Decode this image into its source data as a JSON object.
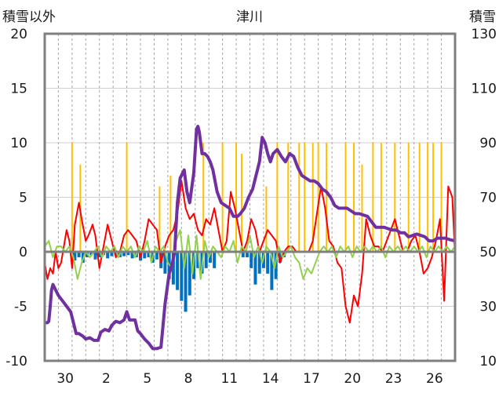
{
  "chart_data": {
    "type": "line",
    "title": "津川",
    "ylabel_left": "積雪以外",
    "ylabel_right": "積雪",
    "ylim_left": [
      -10,
      20
    ],
    "ylim_right": [
      10,
      130
    ],
    "yticks_left": [
      "20",
      "15",
      "10",
      "5",
      "0",
      "-5",
      "-10"
    ],
    "yticks_right": [
      "130",
      "110",
      "90",
      "70",
      "50",
      "30",
      "10"
    ],
    "x_ticks": [
      "30",
      "2",
      "5",
      "8",
      "11",
      "14",
      "17",
      "20",
      "23",
      "26"
    ],
    "x_tick_positions": [
      1.5,
      4.5,
      7.5,
      10.5,
      13.5,
      16.5,
      19.5,
      22.5,
      25.5,
      28.5
    ],
    "xlim": [
      0,
      30
    ],
    "grid": true,
    "colors": {
      "frame": "#7f7f7f",
      "grid_h": "#d0d0d0",
      "grid_v": "#a6a6a6",
      "red": "#ff0000",
      "green": "#92d050",
      "blue": "#0070c0",
      "orange": "#ffc000",
      "purple": "#7030a0"
    },
    "series": [
      {
        "color": "purple",
        "axis": "right",
        "x": [
          0,
          0.2,
          0.3,
          0.4,
          0.5,
          0.6,
          0.8,
          1.0,
          1.3,
          1.6,
          1.9,
          2.1,
          2.3,
          2.5,
          2.8,
          3.0,
          3.3,
          3.6,
          3.9,
          4.1,
          4.4,
          4.7,
          4.9,
          5.2,
          5.5,
          5.8,
          6.0,
          6.2,
          6.4,
          6.6,
          6.8,
          7.0,
          7.3,
          7.6,
          7.9,
          8.2,
          8.5,
          8.8,
          9.1,
          9.3,
          9.5,
          9.7,
          9.9,
          10.2,
          10.4,
          10.6,
          10.9,
          11.1,
          11.2,
          11.3,
          11.5,
          11.7,
          11.9,
          12.1,
          12.3,
          12.6,
          12.9,
          13.2,
          13.5,
          13.8,
          14.1,
          14.3,
          14.6,
          14.9,
          15.2,
          15.5,
          15.7,
          15.9,
          16.1,
          16.3,
          16.5,
          16.7,
          17.0,
          17.3,
          17.6,
          17.9,
          18.2,
          18.5,
          18.8,
          19.1,
          19.4,
          19.7,
          20.0,
          20.3,
          20.6,
          20.9,
          21.2,
          21.5,
          21.8,
          22.1,
          22.4,
          22.7,
          23.0,
          23.3,
          23.6,
          23.9,
          24.2,
          24.5,
          24.8,
          25.1,
          25.4,
          25.7,
          26.0,
          26.3,
          26.6,
          26.9,
          27.2,
          27.5,
          27.8,
          28.1,
          28.4,
          28.7,
          29.0,
          29.3,
          29.6,
          30.0
        ],
        "values": [
          24,
          24,
          24.5,
          30,
          36,
          38,
          36,
          34,
          32,
          30,
          28,
          24,
          20,
          20,
          19,
          18,
          18.5,
          17.5,
          17.5,
          20.5,
          21.5,
          21,
          23,
          24.5,
          24,
          25,
          28,
          25,
          25,
          25,
          21,
          20,
          18,
          16.5,
          14.5,
          14.5,
          15,
          31,
          42,
          45,
          50,
          68,
          77,
          80,
          72,
          68,
          79,
          95,
          96,
          94,
          86,
          86,
          85,
          83,
          80,
          72,
          68,
          67,
          66,
          63,
          63,
          64,
          66,
          70,
          73,
          79,
          83,
          92,
          90,
          86,
          83,
          86,
          87.5,
          85,
          83,
          86,
          85,
          81,
          78,
          77,
          76,
          76,
          75,
          73,
          72,
          70,
          67,
          66,
          66,
          66,
          65,
          64,
          64,
          63.5,
          63,
          61,
          59,
          59,
          59,
          58.5,
          58,
          58,
          57,
          57,
          55.5,
          56,
          56.5,
          56,
          55.5,
          54,
          54,
          55,
          55,
          55,
          54.5,
          54
        ]
      },
      {
        "color": "red",
        "axis": "left",
        "x": [
          0,
          0.2,
          0.4,
          0.6,
          0.8,
          1.0,
          1.2,
          1.4,
          1.6,
          1.8,
          2.0,
          2.2,
          2.5,
          2.7,
          3.0,
          3.2,
          3.5,
          3.7,
          4.0,
          4.3,
          4.6,
          4.9,
          5.2,
          5.5,
          5.8,
          6.1,
          6.4,
          6.7,
          7.0,
          7.3,
          7.6,
          7.9,
          8.2,
          8.5,
          8.8,
          9.1,
          9.4,
          9.7,
          10.0,
          10.3,
          10.6,
          10.9,
          11.2,
          11.5,
          11.8,
          12.1,
          12.4,
          12.7,
          13.0,
          13.3,
          13.6,
          13.9,
          14.2,
          14.5,
          14.8,
          15.1,
          15.4,
          15.7,
          16.0,
          16.3,
          16.6,
          16.9,
          17.2,
          17.5,
          17.8,
          18.1,
          18.4,
          18.7,
          19.0,
          19.3,
          19.6,
          19.9,
          20.2,
          20.5,
          20.8,
          21.1,
          21.4,
          21.7,
          22.0,
          22.3,
          22.6,
          22.9,
          23.2,
          23.5,
          23.8,
          24.1,
          24.4,
          24.7,
          25.0,
          25.3,
          25.6,
          25.9,
          26.2,
          26.5,
          26.8,
          27.1,
          27.4,
          27.7,
          28.0,
          28.3,
          28.6,
          28.9,
          29.2,
          29.5,
          29.8,
          30.0
        ],
        "values": [
          -1,
          -2.5,
          -1.5,
          -2,
          0,
          -1.5,
          -1,
          0.5,
          2,
          1,
          -1.5,
          2.5,
          4.5,
          3,
          1,
          1.5,
          2.5,
          1.5,
          -1.5,
          0.5,
          2.5,
          1,
          -0.5,
          0,
          1.5,
          2,
          1.5,
          1,
          -0.5,
          1,
          3,
          2.5,
          2,
          -1,
          0.5,
          1.5,
          2,
          3.5,
          6.5,
          4,
          3,
          3.5,
          2,
          1.5,
          3,
          2.5,
          4,
          2,
          0,
          1,
          5.5,
          4,
          2,
          0,
          1,
          3,
          2,
          0,
          1,
          2,
          1.5,
          1,
          -1,
          0,
          0.5,
          0.5,
          0,
          0,
          0,
          0,
          1,
          3.5,
          6,
          4,
          1,
          0.5,
          -1,
          -1.5,
          -5,
          -6.5,
          -4,
          -5,
          -2,
          3,
          1.5,
          0.5,
          0.5,
          0,
          1,
          2,
          3,
          1.5,
          0,
          0,
          1,
          1.5,
          0,
          -2,
          -1.5,
          -0.5,
          1,
          3,
          -4.5,
          6,
          5,
          -0.5
        ]
      },
      {
        "color": "green",
        "axis": "left",
        "x": [
          0,
          0.3,
          0.6,
          0.9,
          1.2,
          1.5,
          1.8,
          2.1,
          2.4,
          2.7,
          3.0,
          3.3,
          3.6,
          3.9,
          4.2,
          4.5,
          4.8,
          5.1,
          5.4,
          5.7,
          6.0,
          6.3,
          6.6,
          6.9,
          7.2,
          7.5,
          7.8,
          8.1,
          8.4,
          8.7,
          9.0,
          9.3,
          9.6,
          9.9,
          10.2,
          10.5,
          10.8,
          11.1,
          11.4,
          11.7,
          12.0,
          12.3,
          12.6,
          12.9,
          13.2,
          13.5,
          13.8,
          14.1,
          14.4,
          14.7,
          15.0,
          15.3,
          15.6,
          15.9,
          16.2,
          16.5,
          16.8,
          17.1,
          17.4,
          17.7,
          18.0,
          18.3,
          18.6,
          18.9,
          19.2,
          19.5,
          19.8,
          20.1,
          20.4,
          20.7,
          21.0,
          21.3,
          21.6,
          21.9,
          22.2,
          22.5,
          22.8,
          23.1,
          23.4,
          23.7,
          24.0,
          24.3,
          24.6,
          24.9,
          25.2,
          25.5,
          25.8,
          26.1,
          26.4,
          26.7,
          27.0,
          27.3,
          27.6,
          27.9,
          28.2,
          28.5,
          28.8,
          29.1,
          29.4,
          29.7,
          30.0
        ],
        "values": [
          0.5,
          1,
          -0.5,
          0.5,
          0.5,
          0,
          0.5,
          -0.5,
          -2.5,
          -1,
          0,
          -0.5,
          0,
          0.5,
          -0.5,
          0.5,
          0,
          0.5,
          -0.5,
          0.5,
          0,
          0.5,
          -0.5,
          0.5,
          0,
          1,
          -1,
          0.5,
          0,
          0.5,
          -1,
          -1.5,
          1,
          2,
          -1.5,
          1.5,
          -2,
          1.5,
          -2.5,
          1,
          -0.5,
          0.5,
          0,
          -0.5,
          0.5,
          0,
          1,
          -1,
          0.5,
          0,
          1.5,
          -0.5,
          0.5,
          -1,
          0.5,
          0,
          -1.5,
          0.5,
          -0.5,
          0,
          0.5,
          -0.5,
          -1,
          -2.5,
          -1.5,
          -2,
          -1,
          0,
          0.5,
          0,
          0.5,
          -0.5,
          0.5,
          0,
          0.5,
          -0.5,
          0.5,
          0,
          0.5,
          0,
          0.5,
          0,
          0.5,
          -0.5,
          0.5,
          0,
          0.5,
          0,
          0.5,
          0,
          0.5,
          0,
          0.5,
          -0.5,
          0.5,
          0,
          0.5,
          0,
          0.5,
          0,
          0.5
        ]
      },
      {
        "color": "blue",
        "axis": "left",
        "type": "bar",
        "x": [
          2.2,
          2.5,
          2.8,
          3.1,
          3.4,
          3.7,
          4.0,
          4.3,
          4.6,
          4.9,
          5.2,
          5.5,
          5.8,
          6.1,
          6.4,
          6.7,
          7.0,
          7.3,
          7.6,
          7.9,
          8.2,
          8.5,
          8.8,
          9.1,
          9.4,
          9.7,
          10.0,
          10.3,
          10.6,
          10.9,
          11.2,
          11.5,
          11.8,
          12.1,
          12.4,
          14.5,
          14.8,
          15.1,
          15.4,
          15.7,
          16.0,
          16.3,
          16.6,
          16.9,
          17.2,
          17.5
        ],
        "values": [
          -0.8,
          -0.5,
          -1,
          -0.5,
          -0.3,
          -0.7,
          -0.5,
          -0.3,
          -0.6,
          -0.4,
          -0.3,
          -0.5,
          -0.4,
          -0.3,
          -0.6,
          -0.5,
          -0.8,
          -0.6,
          -0.5,
          -1,
          -0.7,
          -1.5,
          -2,
          -2.5,
          -3,
          -3.5,
          -4.5,
          -5.5,
          -4,
          -2.5,
          -1.5,
          -2,
          -1.5,
          -1,
          -1.5,
          -0.5,
          -0.5,
          -1.5,
          -3,
          -2,
          -1.5,
          -2,
          -3.5,
          -2.5,
          -1,
          -0.5
        ]
      },
      {
        "color": "orange",
        "axis": "left",
        "type": "spike",
        "x": [
          2.0,
          2.6,
          6.0,
          8.4,
          9.2,
          11.6,
          13.0,
          14.0,
          14.4,
          16.2,
          17.0,
          17.8,
          18.6,
          19.0,
          19.6,
          20.0,
          20.6,
          22.0,
          22.6,
          23.2,
          24.0,
          24.6,
          25.6,
          26.6,
          27.4,
          28.0,
          28.4,
          29.0
        ],
        "values": [
          10,
          8,
          10,
          6,
          7,
          10,
          10,
          10,
          9,
          6,
          10,
          10,
          10,
          10,
          10,
          10,
          10,
          10,
          10,
          8,
          10,
          10,
          10,
          10,
          10,
          10,
          10,
          10
        ]
      }
    ]
  }
}
